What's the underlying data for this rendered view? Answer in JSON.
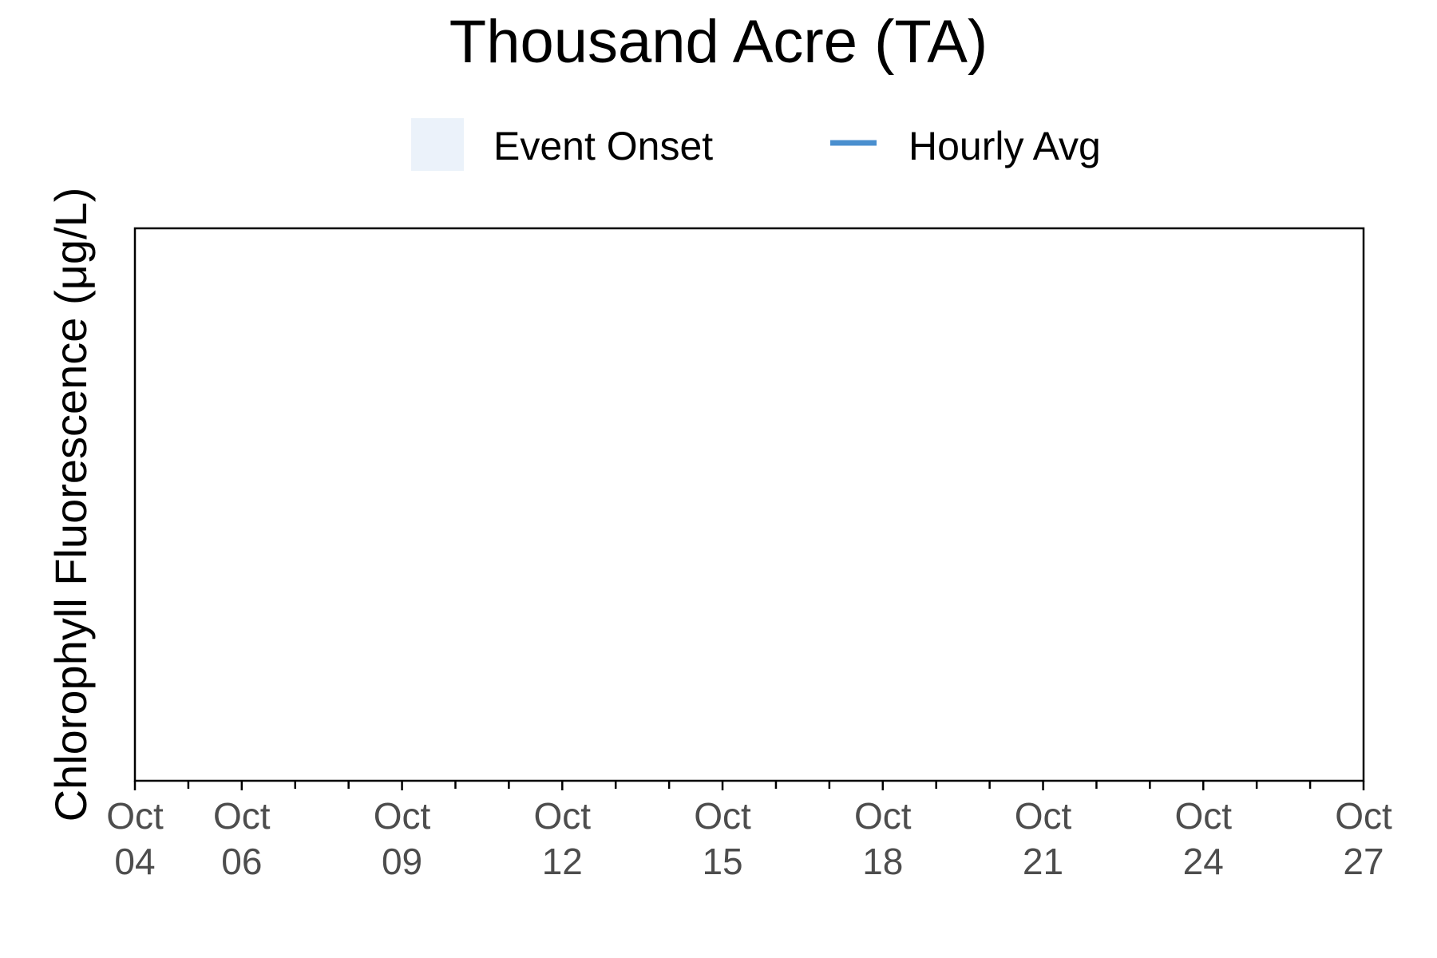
{
  "chart_data": {
    "type": "line",
    "title": "Thousand Acre (TA)",
    "xlabel": "",
    "ylabel": "Chlorophyll Fluorescence (μg/L)",
    "x_range": [
      "2023-10-04",
      "2023-10-27"
    ],
    "x_tick_labels": [
      {
        "date": "2023-10-04",
        "month": "Oct",
        "day": "04"
      },
      {
        "date": "2023-10-06",
        "month": "Oct",
        "day": "06"
      },
      {
        "date": "2023-10-09",
        "month": "Oct",
        "day": "09"
      },
      {
        "date": "2023-10-12",
        "month": "Oct",
        "day": "12"
      },
      {
        "date": "2023-10-15",
        "month": "Oct",
        "day": "15"
      },
      {
        "date": "2023-10-18",
        "month": "Oct",
        "day": "18"
      },
      {
        "date": "2023-10-21",
        "month": "Oct",
        "day": "21"
      },
      {
        "date": "2023-10-24",
        "month": "Oct",
        "day": "24"
      },
      {
        "date": "2023-10-27",
        "month": "Oct",
        "day": "27"
      }
    ],
    "x_minor_ticks": [
      "2023-10-05",
      "2023-10-07",
      "2023-10-08",
      "2023-10-10",
      "2023-10-11",
      "2023-10-13",
      "2023-10-14",
      "2023-10-16",
      "2023-10-17",
      "2023-10-19",
      "2023-10-20",
      "2023-10-22",
      "2023-10-23",
      "2023-10-25",
      "2023-10-26"
    ],
    "legend": {
      "placement": "top",
      "entries": [
        {
          "label": "Event Onset",
          "kind": "fill",
          "color": "#ebf2fa"
        },
        {
          "label": "Hourly Avg",
          "kind": "line",
          "color": "#4a8fcf"
        }
      ]
    },
    "series": [
      {
        "name": "Hourly Avg",
        "color": "#4a8fcf",
        "values": []
      }
    ],
    "events": [],
    "grid": false
  },
  "colors": {
    "axis": "#000000",
    "tick_text": "#4d4d4d",
    "event_fill": "#ebf2fa",
    "line": "#4a8fcf"
  }
}
